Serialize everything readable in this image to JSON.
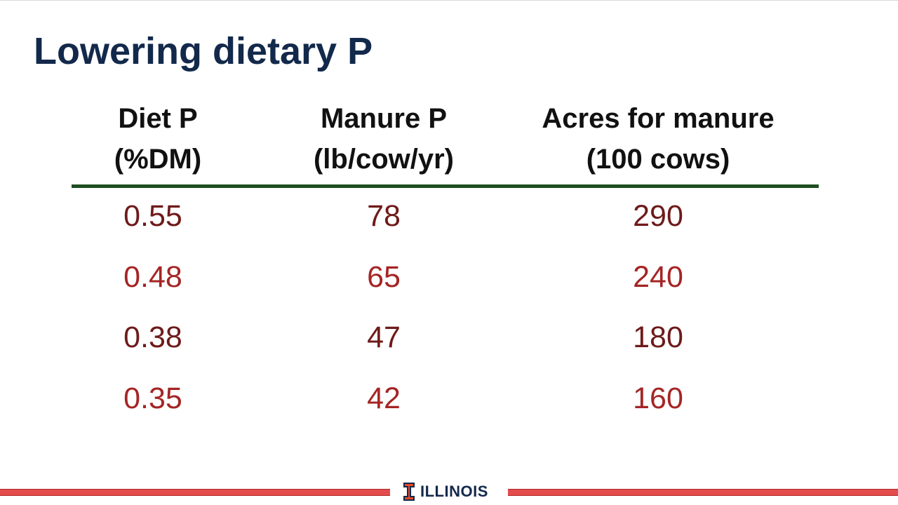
{
  "slide": {
    "title": "Lowering dietary P"
  },
  "table": {
    "headers": [
      {
        "line1": "Diet P",
        "line2": "(%DM)"
      },
      {
        "line1": "Manure P",
        "line2": "(lb/cow/yr)"
      },
      {
        "line1": "Acres for manure",
        "line2": "(100 cows)"
      }
    ],
    "rows": [
      [
        "0.55",
        "78",
        "290"
      ],
      [
        "0.48",
        "65",
        "240"
      ],
      [
        "0.38",
        "47",
        "180"
      ],
      [
        "0.35",
        "42",
        "160"
      ]
    ]
  },
  "footer": {
    "logo_text": "ILLINOIS"
  },
  "colors": {
    "title": "#13294b",
    "rule": "#1f4e20",
    "row_dark": "#6e1a1a",
    "row_red": "#a52525",
    "brand_orange": "#e84a27"
  },
  "icons": {
    "logo": "block-i-icon"
  }
}
